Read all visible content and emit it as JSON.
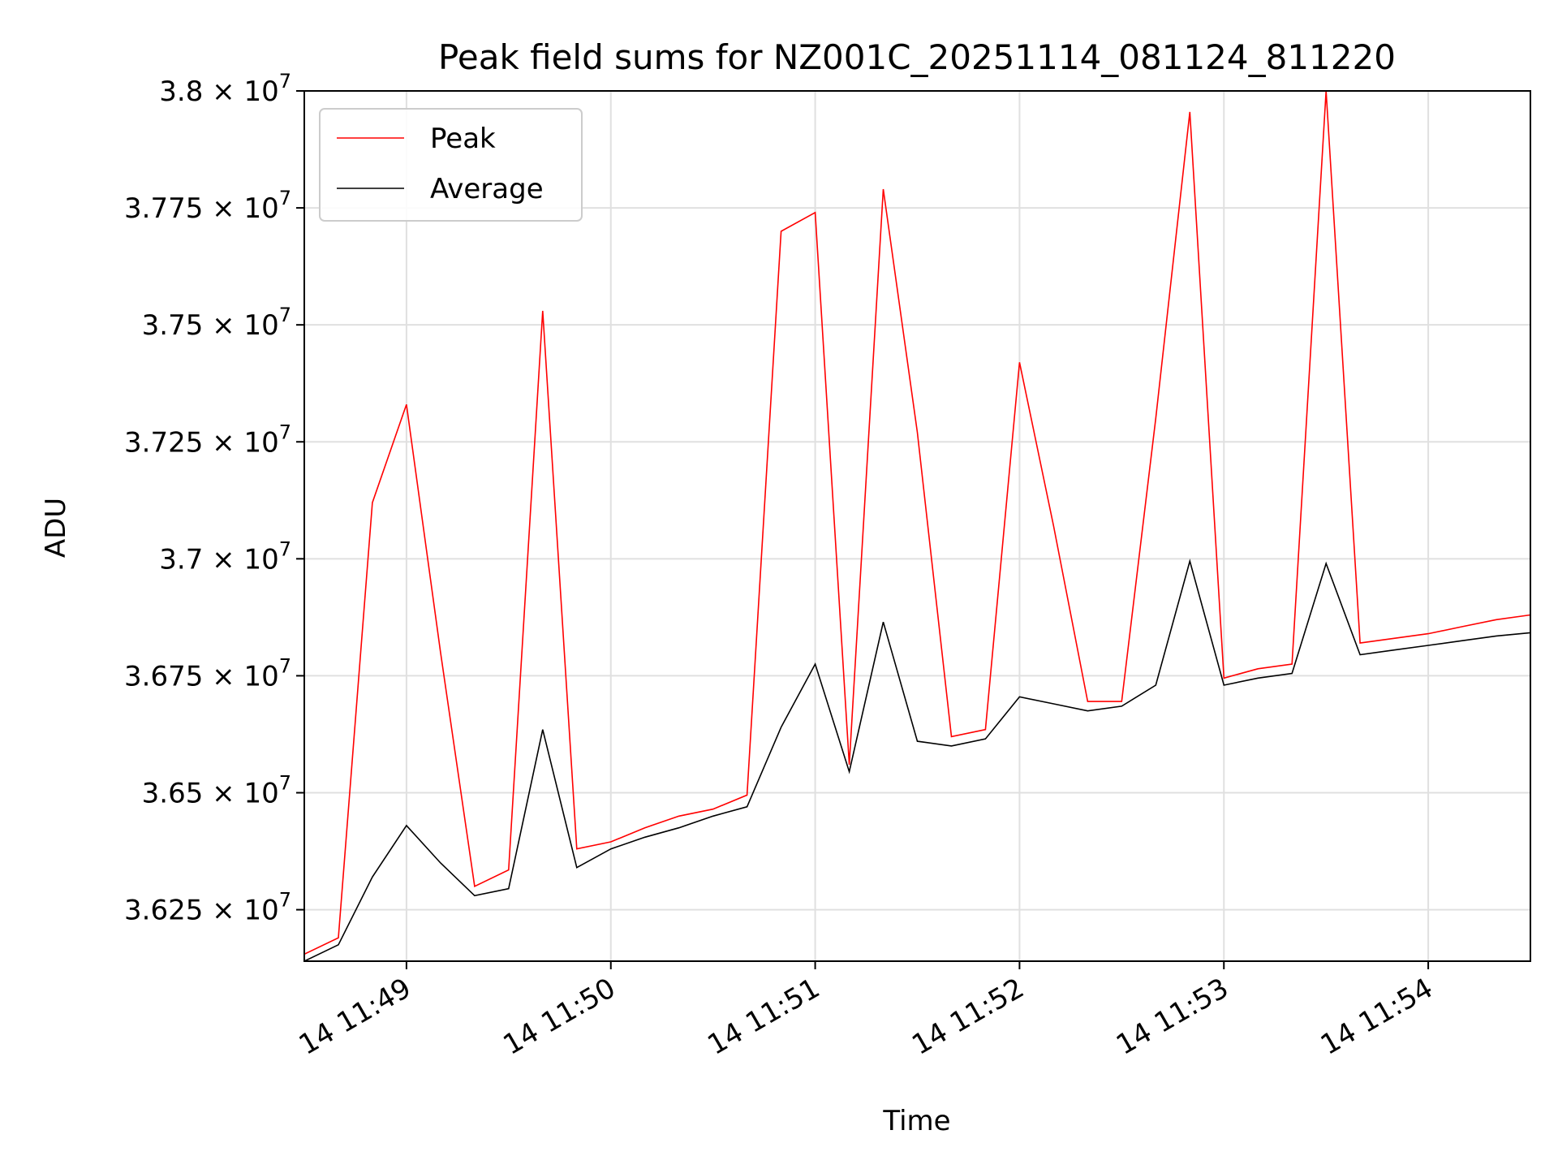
{
  "chart_data": {
    "type": "line",
    "title": "Peak field sums for NZ001C_20251114_081124_811220",
    "xlabel": "Time",
    "ylabel": "ADU",
    "x_ticks": [
      "14 11:49",
      "14 11:50",
      "14 11:51",
      "14 11:52",
      "14 11:53",
      "14 11:54"
    ],
    "x_tick_values": [
      "11:49:00",
      "11:50:00",
      "11:51:00",
      "11:52:00",
      "11:53:00",
      "11:54:00"
    ],
    "y_ticks": [
      {
        "value": 36250000,
        "mantissa": "3.625",
        "exponent": "7"
      },
      {
        "value": 36500000,
        "mantissa": "3.65",
        "exponent": "7"
      },
      {
        "value": 36750000,
        "mantissa": "3.675",
        "exponent": "7"
      },
      {
        "value": 37000000,
        "mantissa": "3.7",
        "exponent": "7"
      },
      {
        "value": 37250000,
        "mantissa": "3.725",
        "exponent": "7"
      },
      {
        "value": 37500000,
        "mantissa": "3.75",
        "exponent": "7"
      },
      {
        "value": 37750000,
        "mantissa": "3.775",
        "exponent": "7"
      },
      {
        "value": 38000000,
        "mantissa": "3.8",
        "exponent": "7"
      }
    ],
    "xlim": [
      "11:48:30",
      "11:54:30"
    ],
    "ylim": [
      36140000,
      38000000
    ],
    "grid": true,
    "legend_position": "top-left",
    "x": [
      "11:48:30",
      "11:48:40",
      "11:48:50",
      "11:49:00",
      "11:49:10",
      "11:49:20",
      "11:49:30",
      "11:49:40",
      "11:49:50",
      "11:50:00",
      "11:50:10",
      "11:50:20",
      "11:50:30",
      "11:50:40",
      "11:50:50",
      "11:51:00",
      "11:51:10",
      "11:51:20",
      "11:51:30",
      "11:51:40",
      "11:51:50",
      "11:52:00",
      "11:52:10",
      "11:52:20",
      "11:52:30",
      "11:52:40",
      "11:52:50",
      "11:53:00",
      "11:53:10",
      "11:53:20",
      "11:53:30",
      "11:53:40",
      "11:53:50",
      "11:54:00",
      "11:54:10",
      "11:54:20",
      "11:54:30"
    ],
    "series": [
      {
        "name": "Peak",
        "color": "#ff0000",
        "values": [
          36155000,
          36190000,
          37120000,
          37330000,
          36800000,
          36300000,
          36335000,
          37530000,
          36380000,
          36395000,
          36425000,
          36450000,
          36465000,
          36495000,
          37700000,
          37740000,
          36560000,
          37790000,
          37270000,
          36620000,
          36635000,
          37420000,
          37070000,
          36695000,
          36695000,
          37300000,
          37955000,
          36745000,
          36765000,
          36775000,
          38010000,
          36820000,
          36830000,
          36840000,
          36855000,
          36870000,
          36880000
        ]
      },
      {
        "name": "Average",
        "color": "#000000",
        "values": [
          36140000,
          36175000,
          36320000,
          36430000,
          36350000,
          36280000,
          36295000,
          36635000,
          36340000,
          36380000,
          36405000,
          36425000,
          36450000,
          36470000,
          36640000,
          36775000,
          36545000,
          36865000,
          36610000,
          36600000,
          36615000,
          36705000,
          36690000,
          36675000,
          36685000,
          36730000,
          36995000,
          36730000,
          36745000,
          36755000,
          36990000,
          36795000,
          36805000,
          36815000,
          36825000,
          36835000,
          36842000
        ]
      }
    ]
  }
}
